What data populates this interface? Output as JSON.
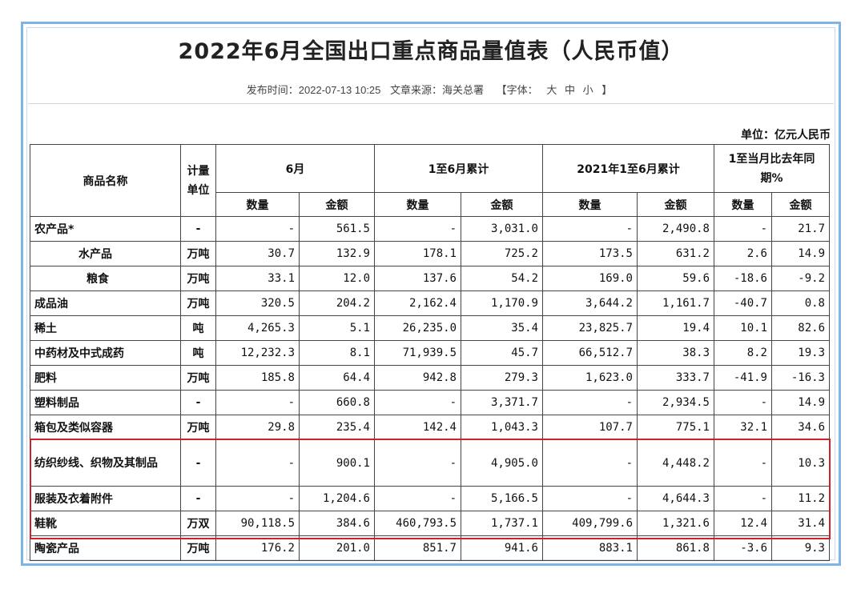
{
  "title": "2022年6月全国出口重点商品量值表（人民币值）",
  "meta": {
    "publish": "发布时间：2022-07-13 10:25",
    "source": "文章来源：海关总署",
    "font": "【字体：",
    "big": "大",
    "mid": "中",
    "small": "小",
    "close": "】"
  },
  "unit_note": "单位：亿元人民币",
  "headers": {
    "name": "商品名称",
    "unit": "计量单位",
    "june": "6月",
    "ytd": "1至6月累计",
    "ytd2021": "2021年1至6月累计",
    "yoy": "1至当月比去年同期%",
    "qty": "数量",
    "amt": "金额"
  },
  "rows": [
    {
      "name": "农产品*",
      "unit": "-",
      "q6": "-",
      "a6": "561.5",
      "qy": "-",
      "ay": "3,031.0",
      "q21": "-",
      "a21": "2,490.8",
      "qp": "-",
      "ap": "21.7"
    },
    {
      "name": "水产品",
      "unit": "万吨",
      "q6": "30.7",
      "a6": "132.9",
      "qy": "178.1",
      "ay": "725.2",
      "q21": "173.5",
      "a21": "631.2",
      "qp": "2.6",
      "ap": "14.9"
    },
    {
      "name": "粮食",
      "unit": "万吨",
      "q6": "33.1",
      "a6": "12.0",
      "qy": "137.6",
      "ay": "54.2",
      "q21": "169.0",
      "a21": "59.6",
      "qp": "-18.6",
      "ap": "-9.2"
    },
    {
      "name": "成品油",
      "unit": "万吨",
      "q6": "320.5",
      "a6": "204.2",
      "qy": "2,162.4",
      "ay": "1,170.9",
      "q21": "3,644.2",
      "a21": "1,161.7",
      "qp": "-40.7",
      "ap": "0.8"
    },
    {
      "name": "稀土",
      "unit": "吨",
      "q6": "4,265.3",
      "a6": "5.1",
      "qy": "26,235.0",
      "ay": "35.4",
      "q21": "23,825.7",
      "a21": "19.4",
      "qp": "10.1",
      "ap": "82.6"
    },
    {
      "name": "中药材及中式成药",
      "unit": "吨",
      "q6": "12,232.3",
      "a6": "8.1",
      "qy": "71,939.5",
      "ay": "45.7",
      "q21": "66,512.7",
      "a21": "38.3",
      "qp": "8.2",
      "ap": "19.3"
    },
    {
      "name": "肥料",
      "unit": "万吨",
      "q6": "185.8",
      "a6": "64.4",
      "qy": "942.8",
      "ay": "279.3",
      "q21": "1,623.0",
      "a21": "333.7",
      "qp": "-41.9",
      "ap": "-16.3"
    },
    {
      "name": "塑料制品",
      "unit": "-",
      "q6": "-",
      "a6": "660.8",
      "qy": "-",
      "ay": "3,371.7",
      "q21": "-",
      "a21": "2,934.5",
      "qp": "-",
      "ap": "14.9"
    },
    {
      "name": "箱包及类似容器",
      "unit": "万吨",
      "q6": "29.8",
      "a6": "235.4",
      "qy": "142.4",
      "ay": "1,043.3",
      "q21": "107.7",
      "a21": "775.1",
      "qp": "32.1",
      "ap": "34.6"
    },
    {
      "name": "纺织纱线、织物及其制品",
      "unit": "-",
      "q6": "-",
      "a6": "900.1",
      "qy": "-",
      "ay": "4,905.0",
      "q21": "-",
      "a21": "4,448.2",
      "qp": "-",
      "ap": "10.3"
    },
    {
      "name": "服装及衣着附件",
      "unit": "-",
      "q6": "-",
      "a6": "1,204.6",
      "qy": "-",
      "ay": "5,166.5",
      "q21": "-",
      "a21": "4,644.3",
      "qp": "-",
      "ap": "11.2"
    },
    {
      "name": "鞋靴",
      "unit": "万双",
      "q6": "90,118.5",
      "a6": "384.6",
      "qy": "460,793.5",
      "ay": "1,737.1",
      "q21": "409,799.6",
      "a21": "1,321.6",
      "qp": "12.4",
      "ap": "31.4"
    },
    {
      "name": "陶瓷产品",
      "unit": "万吨",
      "q6": "176.2",
      "a6": "201.0",
      "qy": "851.7",
      "ay": "941.6",
      "q21": "883.1",
      "a21": "861.8",
      "qp": "-3.6",
      "ap": "9.3"
    }
  ]
}
